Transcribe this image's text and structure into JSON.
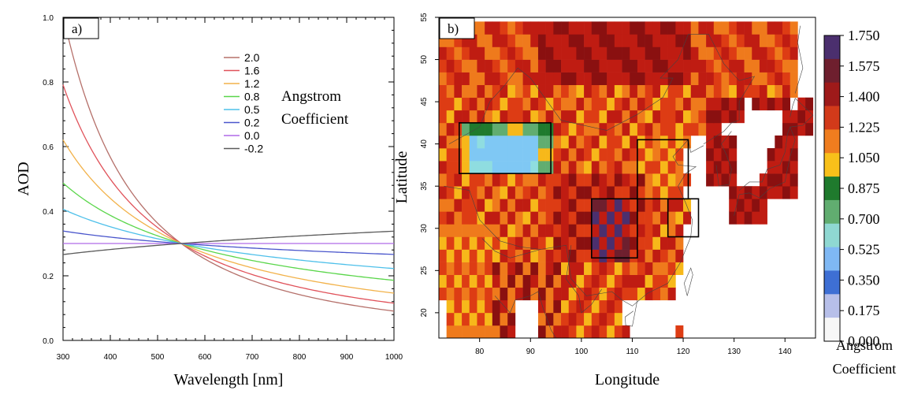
{
  "chart_data": [
    {
      "type": "line",
      "panel_label": "a)",
      "xlabel": "Wavelength [nm]",
      "ylabel": "AOD",
      "xlim": [
        300,
        1000
      ],
      "ylim": [
        0.0,
        1.0
      ],
      "x_ticks": [
        "300",
        "400",
        "500",
        "600",
        "700",
        "800",
        "900",
        "1000"
      ],
      "y_ticks": [
        "0.0",
        "0.2",
        "0.4",
        "0.6",
        "0.8",
        "1.0"
      ],
      "grid": false,
      "legend_position": "top-right",
      "legend_title_lines": [
        "Angstrom",
        "Coefficient"
      ],
      "reference_wavelength": 550,
      "reference_aod": 0.3,
      "series": [
        {
          "name": "2.0",
          "angstrom": 2.0,
          "color": "#b5706a"
        },
        {
          "name": "1.6",
          "angstrom": 1.6,
          "color": "#e0525a"
        },
        {
          "name": "1.2",
          "angstrom": 1.2,
          "color": "#f2b24a"
        },
        {
          "name": "0.8",
          "angstrom": 0.8,
          "color": "#5ad64a"
        },
        {
          "name": "0.5",
          "angstrom": 0.5,
          "color": "#4ec0ea"
        },
        {
          "name": "0.2",
          "angstrom": 0.2,
          "color": "#4a56cc"
        },
        {
          "name": "0.0",
          "angstrom": 0.0,
          "color": "#b06ae8"
        },
        {
          "name": "-0.2",
          "angstrom": -0.2,
          "color": "#5a5a5a"
        }
      ]
    },
    {
      "type": "heatmap",
      "panel_label": "b)",
      "xlabel": "Longitude",
      "ylabel": "Latitude",
      "xlim": [
        72,
        146
      ],
      "ylim": [
        17,
        55
      ],
      "x_ticks": [
        "80",
        "90",
        "100",
        "110",
        "120",
        "130",
        "140"
      ],
      "y_ticks": [
        "20",
        "25",
        "30",
        "35",
        "40",
        "45",
        "50",
        "55"
      ],
      "colorbar_levels": [
        "1.750",
        "1.575",
        "1.400",
        "1.225",
        "1.050",
        "0.875",
        "0.700",
        "0.525",
        "0.350",
        "0.175",
        "0.000"
      ],
      "colorbar_colors": [
        "#4b2f6e",
        "#6e1f2e",
        "#9e1a1a",
        "#d23a1a",
        "#ef7d1f",
        "#f8c01a",
        "#1f7a2d",
        "#61ad70",
        "#8fd8d2",
        "#7fb8f4",
        "#3e6fd4",
        "#b7bfe9",
        "#f7f7f7"
      ],
      "colorbar_title_lines": [
        "Angstrom",
        "Coefficient"
      ],
      "boxes": [
        {
          "lon": [
            76,
            94
          ],
          "lat": [
            36.5,
            42.5
          ]
        },
        {
          "lon": [
            102,
            111
          ],
          "lat": [
            26.5,
            33.5
          ]
        },
        {
          "lon": [
            111,
            121
          ],
          "lat": [
            33.5,
            40.5
          ]
        },
        {
          "lon": [
            117,
            123
          ],
          "lat": [
            29,
            33.5
          ]
        }
      ]
    }
  ]
}
